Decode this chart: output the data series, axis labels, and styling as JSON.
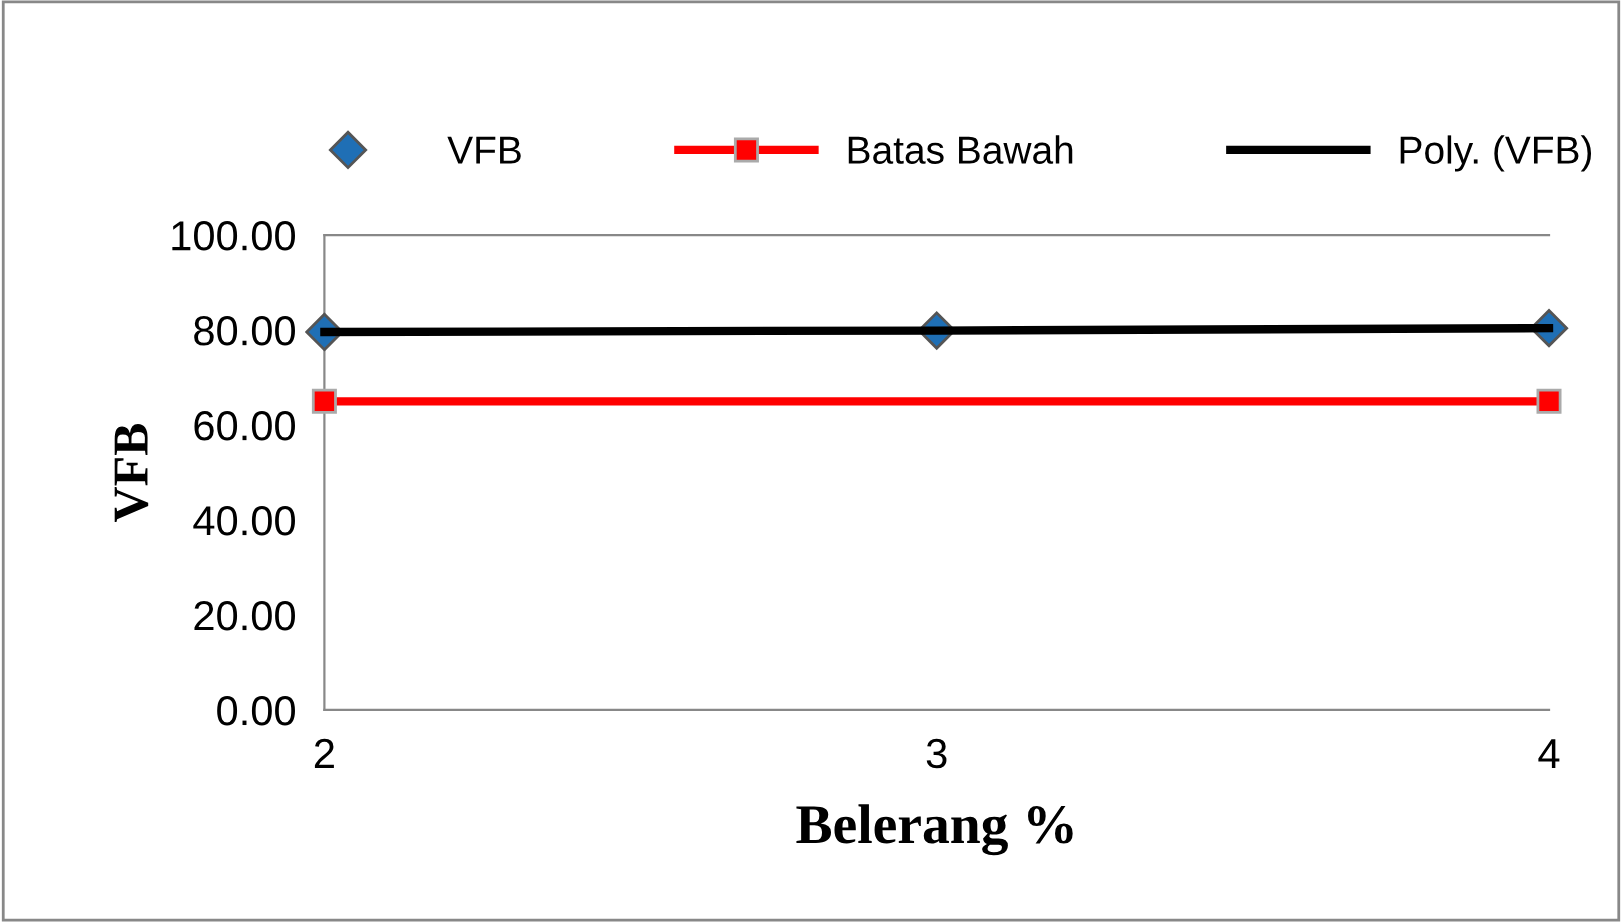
{
  "chart_data": {
    "type": "line",
    "xlabel": "Belerang %",
    "ylabel": "VFB",
    "series": [
      {
        "name": "VFB",
        "type": "scatter",
        "marker": "diamond",
        "color": "#1f6fb5",
        "x": [
          2,
          3,
          4
        ],
        "values": [
          79.6,
          79.9,
          80.4
        ]
      },
      {
        "name": "Batas Bawah",
        "marker": "square",
        "color": "#ff0000",
        "x": [
          2,
          4
        ],
        "values": [
          65,
          65
        ]
      },
      {
        "name": "Poly. (VFB)",
        "marker": "none",
        "color": "#000000",
        "x": [
          2,
          3,
          4
        ],
        "values": [
          79.6,
          79.9,
          80.4
        ]
      }
    ],
    "xlim": [
      2,
      4
    ],
    "xticks": [
      2,
      3,
      4
    ],
    "ylim": [
      0,
      100
    ],
    "yticks": [
      {
        "value": 0,
        "label": "0.00"
      },
      {
        "value": 20,
        "label": "20.00"
      },
      {
        "value": 40,
        "label": "40.00"
      },
      {
        "value": 60,
        "label": "60.00"
      },
      {
        "value": 80,
        "label": "80.00"
      },
      {
        "value": 100,
        "label": "100.00"
      }
    ],
    "grid": false,
    "legend": "top"
  }
}
